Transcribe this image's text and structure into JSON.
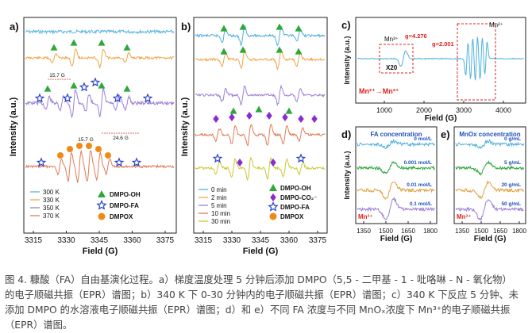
{
  "chart_data": [
    {
      "panel": "a)",
      "type": "line",
      "description_kind": "EPR spectra, stacked traces",
      "xlabel": "Field (G)",
      "ylabel": "Intensity (a.u.)",
      "xticks": [
        "3315",
        "3330",
        "3345",
        "3360",
        "3375"
      ],
      "xlim": [
        3310,
        3380
      ],
      "series": [
        {
          "name": "300 K",
          "color": "#5bb6e0"
        },
        {
          "name": "330 K",
          "color": "#f0a64a"
        },
        {
          "name": "350 K",
          "color": "#9b7fd6"
        },
        {
          "name": "370 K",
          "color": "#e07b56"
        }
      ],
      "legend_markers": [
        {
          "label": "DMPO-OH",
          "marker": "triangle",
          "color": "#2ea83a"
        },
        {
          "label": "DMPO-FA",
          "marker": "star",
          "color": "#2a43c7"
        },
        {
          "label": "DMPOX",
          "marker": "circle",
          "color": "#f08a16"
        }
      ],
      "annotations": [
        "15.7 G",
        "15.7 G",
        "24.6 G"
      ]
    },
    {
      "panel": "b)",
      "type": "line",
      "description_kind": "EPR spectra, stacked traces",
      "xlabel": "Field (G)",
      "ylabel": "Intensity (a.u.)",
      "xticks": [
        "3315",
        "3330",
        "3345",
        "3360",
        "3375"
      ],
      "xlim": [
        3310,
        3380
      ],
      "series": [
        {
          "name": "0 min",
          "color": "#4fb0dd"
        },
        {
          "name": "2 min",
          "color": "#f0a64a"
        },
        {
          "name": "5 min",
          "color": "#9b7fd6"
        },
        {
          "name": "10 min",
          "color": "#e07b56"
        },
        {
          "name": "30 min",
          "color": "#c8c832"
        }
      ],
      "legend_markers": [
        {
          "label": "DMPO-OH",
          "marker": "triangle",
          "color": "#2ea83a"
        },
        {
          "label": "DMPO-CO₂⁻",
          "marker": "diamond",
          "color": "#8a2bd0"
        },
        {
          "label": "DMPO-FA",
          "marker": "star",
          "color": "#2a43c7"
        },
        {
          "label": "DMPOX",
          "marker": "circle",
          "color": "#f08a16"
        }
      ]
    },
    {
      "panel": "c)",
      "type": "line",
      "description_kind": "EPR spectrum",
      "xlabel": "Field (G)",
      "ylabel": "Intensity (a.u.)",
      "xticks": [
        "1000",
        "2000",
        "3000",
        "4000"
      ],
      "xlim": [
        500,
        4500
      ],
      "annotations": [
        "Mn³⁺",
        "X20",
        "g=4.276",
        "g=2.001",
        "Mn²⁺",
        "Mn²⁺→Mn³⁺"
      ]
    },
    {
      "panel": "d)",
      "type": "line",
      "title": "FA concentration",
      "xlabel": "Field (G)",
      "ylabel": "Intensity (a.u.)",
      "xticks": [
        "1350",
        "1500",
        "1650",
        "1800"
      ],
      "series": [
        {
          "name": "0 mol/L",
          "color": "#4fb0dd"
        },
        {
          "name": "0.001 mol/L",
          "color": "#2ea83a"
        },
        {
          "name": "0.01 mol/L",
          "color": "#e0a040"
        },
        {
          "name": "0.1 mol/L",
          "color": "#9b7fd6"
        }
      ],
      "annotations": [
        "Mn³⁺"
      ]
    },
    {
      "panel": "e)",
      "type": "line",
      "title": "MnOx concentration",
      "xlabel": "Field (G)",
      "xticks": [
        "1350",
        "1500",
        "1650",
        "1800"
      ],
      "series": [
        {
          "name": "0 g/mL",
          "color": "#4fb0dd"
        },
        {
          "name": "5 g/mL",
          "color": "#2ea83a"
        },
        {
          "name": "20 g/mL",
          "color": "#e0a040"
        },
        {
          "name": "50 g/mL",
          "color": "#9b7fd6"
        }
      ],
      "annotations": [
        "Mn³⁺"
      ]
    }
  ],
  "caption": {
    "line1": "图 4. 糠酸（FA）自由基演化过程。a）梯度温度处理 5 分钟后添加 DMPO（5,5 - 二甲基 - 1 - 吡咯啉 - N - 氧化物）",
    "line2": "的电子顺磁共振（EPR）谱图；b）340 K 下 0-30 分钟内的电子顺磁共振（EPR）谱图；c）340 K 下反应 5 分钟、未",
    "line3": "添加 DMPO 的水溶液电子顺磁共振（EPR）谱图；d）和 e）不同 FA 浓度与不同 MnOₓ浓度下 Mn³⁺的电子顺磁共振",
    "line4": "（EPR）谱图。"
  }
}
